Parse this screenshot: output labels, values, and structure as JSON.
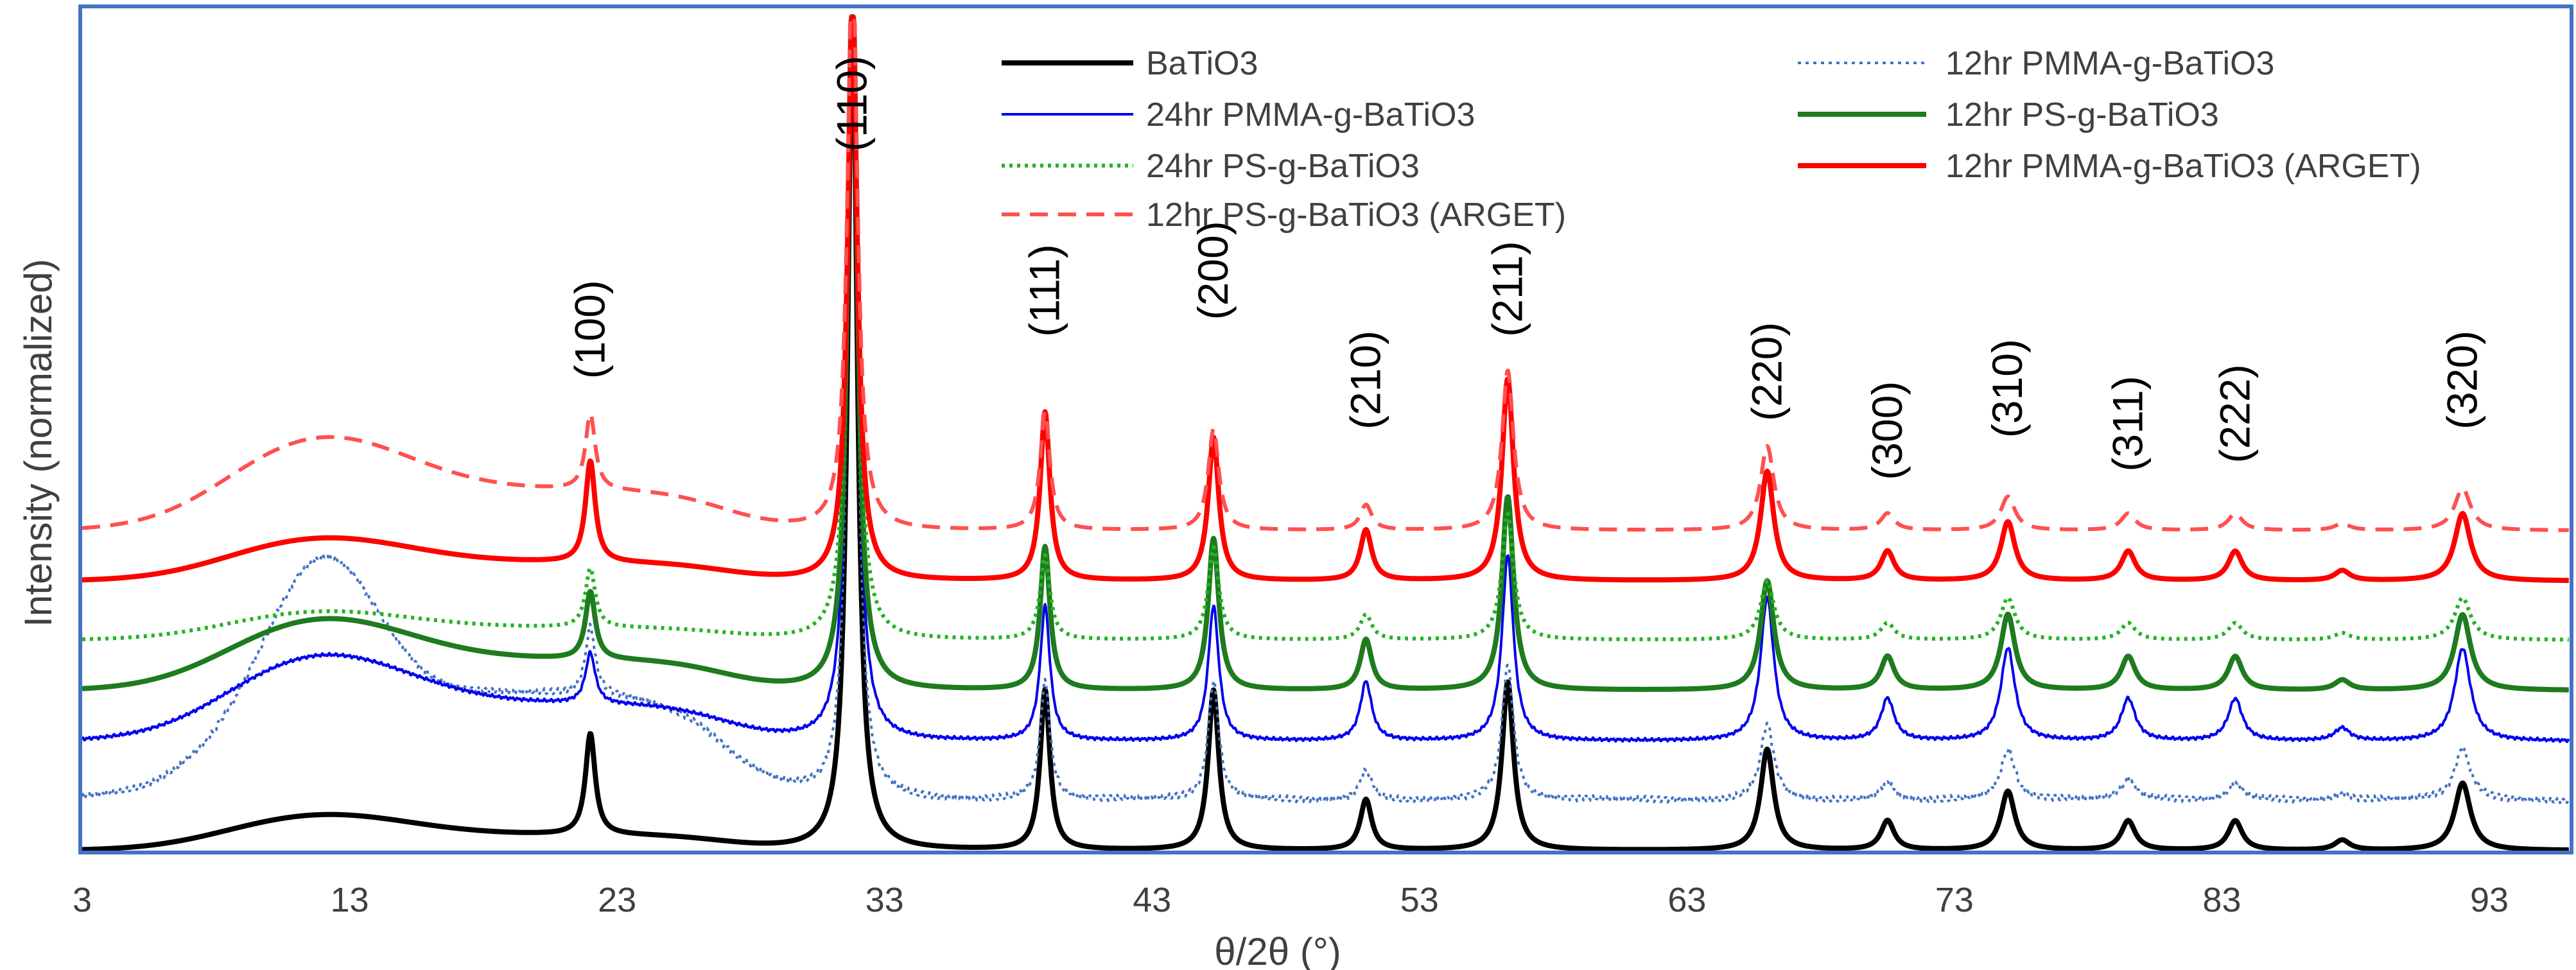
{
  "chart_data": {
    "type": "line",
    "title": "",
    "xlabel": "θ/2θ (°)",
    "ylabel": "Intensity (normalized)",
    "xlim": [
      3,
      96
    ],
    "ylim": [
      0,
      1.0
    ],
    "xticks": [
      "3",
      "13",
      "23",
      "33",
      "43",
      "53",
      "63",
      "73",
      "83",
      "93"
    ],
    "grid": false,
    "legend_position": "top-right",
    "peak_positions": [
      22.0,
      31.8,
      39.0,
      45.3,
      51.0,
      56.3,
      66.0,
      70.5,
      75.0,
      79.5,
      83.5,
      87.5,
      92.0
    ],
    "peak_labels": [
      {
        "text": "(100)",
        "x": 22.0,
        "y": 0.56
      },
      {
        "text": "(110)",
        "x": 31.8,
        "y": 0.83
      },
      {
        "text": "(111)",
        "x": 39.0,
        "y": 0.61
      },
      {
        "text": "(200)",
        "x": 45.3,
        "y": 0.63
      },
      {
        "text": "(210)",
        "x": 51.0,
        "y": 0.5
      },
      {
        "text": "(211)",
        "x": 56.3,
        "y": 0.61
      },
      {
        "text": "(220)",
        "x": 66.0,
        "y": 0.51
      },
      {
        "text": "(300)",
        "x": 70.5,
        "y": 0.44
      },
      {
        "text": "(310)",
        "x": 75.0,
        "y": 0.49
      },
      {
        "text": "(311)",
        "x": 79.5,
        "y": 0.45
      },
      {
        "text": "(222)",
        "x": 83.5,
        "y": 0.46
      },
      {
        "text": "(320)",
        "x": 92.0,
        "y": 0.5
      }
    ],
    "series": [
      {
        "name": "BaTiO3",
        "color": "#000000",
        "dash": "solid",
        "weight": "heavy",
        "baseline": 0.0,
        "hump": 0.025,
        "noise": 0.0,
        "peak_heights": [
          0.12,
          1.0,
          0.19,
          0.19,
          0.06,
          0.2,
          0.12,
          0.035,
          0.07,
          0.035,
          0.035,
          0.012,
          0.08
        ]
      },
      {
        "name": "12hr PMMA-g-BaTiO3",
        "color": "#4472C4",
        "dash": "dotted",
        "weight": "light",
        "baseline": 0.06,
        "hump": 0.17,
        "hump_width": 2.8,
        "noise": 0.004,
        "peak_heights": [
          0.08,
          0.95,
          0.14,
          0.14,
          0.035,
          0.16,
          0.09,
          0.02,
          0.06,
          0.025,
          0.02,
          0.008,
          0.06
        ]
      },
      {
        "name": "24hr PMMA-g-BaTiO3",
        "color": "#0000EE",
        "dash": "solid",
        "weight": "light",
        "baseline": 0.13,
        "hump": 0.06,
        "noise": 0.002,
        "peak_heights": [
          0.06,
          0.9,
          0.16,
          0.16,
          0.07,
          0.22,
          0.17,
          0.05,
          0.11,
          0.05,
          0.05,
          0.015,
          0.11
        ]
      },
      {
        "name": "12hr PS-g-BaTiO3",
        "color": "#1E7B1E",
        "dash": "solid",
        "weight": "heavy",
        "baseline": 0.19,
        "hump": 0.05,
        "noise": 0.0,
        "peak_heights": [
          0.08,
          0.85,
          0.17,
          0.18,
          0.06,
          0.23,
          0.13,
          0.04,
          0.09,
          0.04,
          0.04,
          0.012,
          0.09
        ]
      },
      {
        "name": "24hr PS-g-BaTiO3",
        "color": "#22B422",
        "dash": "dotted",
        "weight": "medium",
        "baseline": 0.25,
        "hump": 0.02,
        "noise": 0.0,
        "peak_heights": [
          0.07,
          0.8,
          0.1,
          0.11,
          0.03,
          0.15,
          0.07,
          0.02,
          0.05,
          0.02,
          0.02,
          0.008,
          0.05
        ]
      },
      {
        "name": "12hr PMMA-g-BaTiO3 (ARGET)",
        "color": "#FF0000",
        "dash": "solid",
        "weight": "heavy",
        "baseline": 0.32,
        "hump": 0.03,
        "noise": 0.0,
        "peak_heights": [
          0.12,
          0.68,
          0.2,
          0.17,
          0.06,
          0.24,
          0.13,
          0.035,
          0.07,
          0.035,
          0.035,
          0.012,
          0.08
        ]
      },
      {
        "name": "12hr PS-g-BaTiO3 (ARGET)",
        "color": "#FF5050",
        "dash": "dashed",
        "weight": "medium",
        "baseline": 0.38,
        "hump": 0.065,
        "noise": 0.0,
        "peak_heights": [
          0.09,
          0.7,
          0.14,
          0.12,
          0.03,
          0.19,
          0.1,
          0.02,
          0.04,
          0.02,
          0.02,
          0.008,
          0.05
        ]
      }
    ],
    "legend": [
      {
        "label": "BaTiO3",
        "series": 0
      },
      {
        "label": "12hr PMMA-g-BaTiO3",
        "series": 1
      },
      {
        "label": "24hr PMMA-g-BaTiO3",
        "series": 2
      },
      {
        "label": "12hr PS-g-BaTiO3",
        "series": 3
      },
      {
        "label": "24hr PS-g-BaTiO3",
        "series": 4
      },
      {
        "label": "12hr PMMA-g-BaTiO3 (ARGET)",
        "series": 5
      },
      {
        "label": "12hr PS-g-BaTiO3 (ARGET)",
        "series": 6
      }
    ]
  }
}
